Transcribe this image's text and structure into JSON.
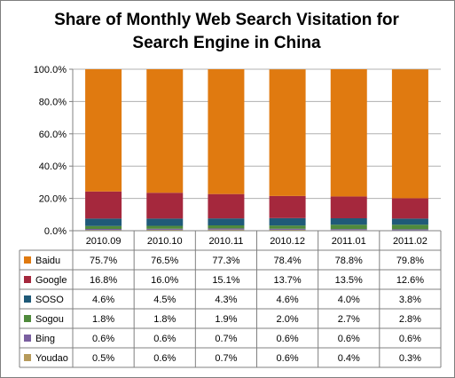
{
  "chart_data": {
    "type": "bar",
    "stacked": true,
    "title": "Share of Monthly Web Search Visitation  for Search Engine in China",
    "title_lines": [
      "Share of Monthly Web Search Visitation  for",
      "Search Engine in China"
    ],
    "categories": [
      "2010.09",
      "2010.10",
      "2010.11",
      "2010.12",
      "2011.01",
      "2011.02"
    ],
    "ylim": [
      0,
      100
    ],
    "yticks": [
      "0.0%",
      "20.0%",
      "40.0%",
      "60.0%",
      "80.0%",
      "100.0%"
    ],
    "grid": true,
    "legend": "data-table-left",
    "series": [
      {
        "name": "Youdao",
        "color": "#b69a5a",
        "values": [
          0.5,
          0.6,
          0.7,
          0.6,
          0.4,
          0.3
        ],
        "labels": [
          "0.5%",
          "0.6%",
          "0.7%",
          "0.6%",
          "0.4%",
          "0.3%"
        ]
      },
      {
        "name": "Bing",
        "color": "#7a5fa0",
        "values": [
          0.6,
          0.6,
          0.7,
          0.6,
          0.6,
          0.6
        ],
        "labels": [
          "0.6%",
          "0.6%",
          "0.7%",
          "0.6%",
          "0.6%",
          "0.6%"
        ]
      },
      {
        "name": "Sogou",
        "color": "#4f8a3c",
        "values": [
          1.8,
          1.8,
          1.9,
          2.0,
          2.7,
          2.8
        ],
        "labels": [
          "1.8%",
          "1.8%",
          "1.9%",
          "2.0%",
          "2.7%",
          "2.8%"
        ]
      },
      {
        "name": "SOSO",
        "color": "#1f5a78",
        "values": [
          4.6,
          4.5,
          4.3,
          4.6,
          4.0,
          3.8
        ],
        "labels": [
          "4.6%",
          "4.5%",
          "4.3%",
          "4.6%",
          "4.0%",
          "3.8%"
        ]
      },
      {
        "name": "Google",
        "color": "#a5283d",
        "values": [
          16.8,
          16.0,
          15.1,
          13.7,
          13.5,
          12.6
        ],
        "labels": [
          "16.8%",
          "16.0%",
          "15.1%",
          "13.7%",
          "13.5%",
          "12.6%"
        ]
      },
      {
        "name": "Baidu",
        "color": "#e07a10",
        "values": [
          75.7,
          76.5,
          77.3,
          78.4,
          78.8,
          79.8
        ],
        "labels": [
          "75.7%",
          "76.5%",
          "77.3%",
          "78.4%",
          "78.8%",
          "79.8%"
        ]
      }
    ],
    "table_order": [
      "Baidu",
      "Google",
      "SOSO",
      "Sogou",
      "Bing",
      "Youdao"
    ]
  }
}
